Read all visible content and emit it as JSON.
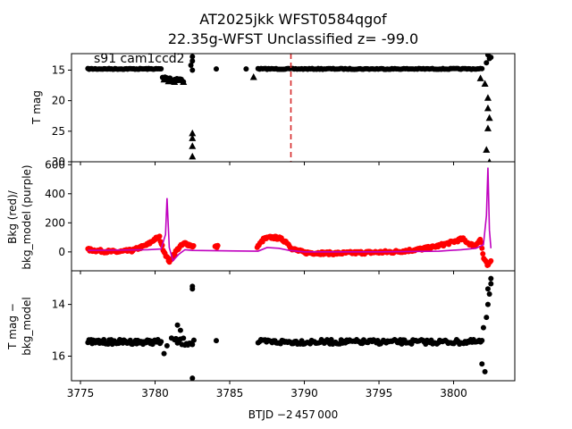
{
  "chart_data": {
    "type": "scatter",
    "title": "AT2025jkk  WFST0584qgof",
    "subtitle": "22.35g-WFST Unclassified z= -99.0",
    "annotation": "s91 cam1ccd2",
    "xlabel": "BTJD −2 457 000",
    "xlim": [
      3774.4,
      3804.1
    ],
    "x_ticks": [
      3775,
      3780,
      3785,
      3790,
      3795,
      3800
    ],
    "marker_line": {
      "x": 3789.1,
      "color": "#d62728",
      "style": "dashed"
    },
    "panels": [
      {
        "name": "top",
        "ylabel": "T mag",
        "ylim": [
          30,
          12.3
        ],
        "y_ticks": [
          15,
          20,
          25,
          30
        ],
        "series": [
          {
            "kind": "band",
            "color": "#000000",
            "segments": [
              {
                "x0": 3775.5,
                "x1": 3780.4,
                "y": 14.8,
                "spread": 0.15,
                "n": 60
              },
              {
                "x0": 3780.5,
                "x1": 3781.0,
                "y": 16.3,
                "spread": 0.6,
                "n": 10
              },
              {
                "x0": 3781.1,
                "x1": 3781.9,
                "y": 16.6,
                "spread": 0.8,
                "n": 12
              },
              {
                "x0": 3786.9,
                "x1": 3801.9,
                "y": 14.8,
                "spread": 0.15,
                "n": 150
              }
            ]
          },
          {
            "kind": "points",
            "color": "#000000",
            "marker": "circle",
            "x": [
              3782.5,
              3782.5,
              3782.4,
              3784.1,
              3786.1,
              3782.5,
              3802.3,
              3802.4,
              3802.2,
              3802.5
            ],
            "y": [
              12.8,
              13.5,
              14.2,
              14.8,
              14.8,
              15.0,
              12.5,
              13.1,
              13.8,
              12.9
            ]
          },
          {
            "kind": "points",
            "color": "#000000",
            "marker": "triangle",
            "x": [
              3780.6,
              3780.9,
              3781.3,
              3781.6,
              3781.9,
              3782.5,
              3782.5,
              3782.5,
              3782.5,
              3786.6,
              3801.8,
              3802.1,
              3802.3,
              3802.3,
              3802.4,
              3802.3,
              3802.2,
              3802.4
            ],
            "y": [
              16.5,
              16.8,
              16.9,
              16.6,
              16.9,
              25.3,
              26.1,
              27.4,
              29.1,
              16.1,
              16.3,
              17.2,
              19.5,
              21.2,
              22.8,
              24.5,
              28.0,
              30.0
            ]
          }
        ]
      },
      {
        "name": "middle",
        "ylabel": "Bkg (red)/\nbkg_model (purple)",
        "ylim": [
          -130,
          620
        ],
        "y_ticks": [
          0,
          200,
          400,
          600
        ],
        "bkg_color": "#ff0000",
        "model_color": "#bf00bf",
        "bkg": {
          "x": [
            3775.5,
            3776.5,
            3777.5,
            3778.5,
            3779.5,
            3780.0,
            3780.3,
            3780.5,
            3780.8,
            3781.0,
            3781.3,
            3781.6,
            3782.0,
            3782.5,
            3784.1,
            3786.9,
            3787.3,
            3787.8,
            3788.3,
            3788.8,
            3789.2,
            3790.0,
            3792.0,
            3794.0,
            3796.0,
            3797.5,
            3798.5,
            3799.3,
            3800.0,
            3800.6,
            3801.0,
            3801.4,
            3801.8,
            3802.0,
            3802.3,
            3802.5
          ],
          "y": [
            15,
            5,
            0,
            10,
            50,
            90,
            100,
            30,
            -40,
            -70,
            -10,
            30,
            60,
            40,
            35,
            40,
            90,
            100,
            95,
            70,
            20,
            -5,
            -10,
            -5,
            0,
            15,
            30,
            50,
            70,
            90,
            60,
            40,
            90,
            -40,
            -100,
            -60
          ]
        },
        "model": {
          "x": [
            3775.5,
            3779.5,
            3780.4,
            3780.7,
            3780.8,
            3780.95,
            3781.2,
            3781.6,
            3782.0,
            3782.5,
            3786.9,
            3787.5,
            3788.3,
            3789.0,
            3790.0,
            3795.0,
            3799.0,
            3800.5,
            3801.5,
            3802.0,
            3802.2,
            3802.3,
            3802.4,
            3802.5
          ],
          "y": [
            10,
            15,
            20,
            120,
            370,
            30,
            -60,
            -15,
            15,
            10,
            5,
            30,
            25,
            10,
            0,
            0,
            5,
            15,
            25,
            50,
            250,
            580,
            150,
            25
          ]
        }
      },
      {
        "name": "bottom",
        "ylabel": "T mag −\nbkg_model",
        "ylim": [
          16.95,
          12.7
        ],
        "y_ticks": [
          14,
          16
        ],
        "series": [
          {
            "kind": "band",
            "color": "#000000",
            "segments": [
              {
                "x0": 3775.5,
                "x1": 3780.4,
                "y": 15.45,
                "spread": 0.18,
                "n": 70
              },
              {
                "x0": 3781.3,
                "x1": 3782.6,
                "y": 15.45,
                "spread": 0.3,
                "n": 14
              },
              {
                "x0": 3786.9,
                "x1": 3801.9,
                "y": 15.45,
                "spread": 0.18,
                "n": 160
              }
            ]
          },
          {
            "kind": "points",
            "color": "#000000",
            "marker": "circle",
            "x": [
              3780.6,
              3780.8,
              3781.1,
              3781.5,
              3781.7,
              3782.5,
              3782.5,
              3782.5,
              3784.1,
              3802.0,
              3802.2,
              3802.3,
              3802.4,
              3802.5,
              3802.5,
              3802.3,
              3801.9,
              3802.1
            ],
            "y": [
              15.9,
              15.6,
              15.3,
              14.8,
              15.0,
              13.3,
              13.4,
              16.85,
              15.4,
              14.9,
              14.5,
              14.0,
              13.6,
              13.2,
              13.0,
              13.4,
              16.3,
              16.6
            ]
          }
        ]
      }
    ]
  }
}
